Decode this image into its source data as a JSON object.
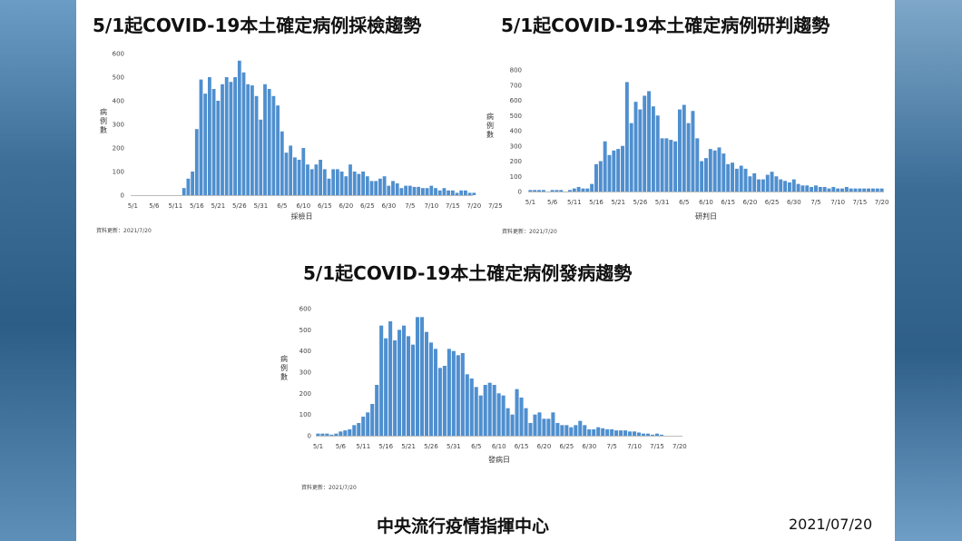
{
  "footer": {
    "org": "中央流行疫情指揮中心",
    "date": "2021/07/20"
  },
  "colors": {
    "bar": "#4f8fcf",
    "axis": "#bbbbbb"
  },
  "chart_data": [
    {
      "type": "bar",
      "title": "5/1起COVID-19本土確定病例採檢趨勢",
      "xlabel": "採檢日",
      "ylabel": "病例數",
      "note": "資料更新：2021/7/20",
      "ylim": [
        0,
        600
      ],
      "yticks": [
        "0",
        "100",
        "200",
        "300",
        "400",
        "500",
        "600"
      ],
      "xticks": [
        "5/1",
        "5/6",
        "5/11",
        "5/16",
        "5/21",
        "5/26",
        "5/31",
        "6/5",
        "6/10",
        "6/15",
        "6/20",
        "6/25",
        "6/30",
        "7/5",
        "7/10",
        "7/15",
        "7/20",
        "7/25"
      ],
      "x_start": "5/1",
      "values": [
        0,
        0,
        0,
        0,
        0,
        0,
        0,
        0,
        0,
        0,
        0,
        0,
        30,
        70,
        100,
        280,
        490,
        430,
        500,
        450,
        400,
        470,
        500,
        480,
        500,
        570,
        520,
        470,
        465,
        420,
        320,
        470,
        450,
        420,
        380,
        270,
        180,
        210,
        160,
        150,
        200,
        130,
        110,
        130,
        150,
        110,
        70,
        110,
        110,
        100,
        80,
        130,
        100,
        90,
        100,
        80,
        60,
        60,
        70,
        80,
        40,
        60,
        50,
        30,
        40,
        40,
        35,
        35,
        30,
        30,
        40,
        30,
        20,
        30,
        20,
        20,
        10,
        20,
        20,
        10,
        10,
        0,
        0,
        0,
        0,
        0,
        0
      ]
    },
    {
      "type": "bar",
      "title": "5/1起COVID-19本土確定病例研判趨勢",
      "xlabel": "研判日",
      "ylabel": "病例數",
      "note": "資料更新：2021/7/20",
      "ylim": [
        0,
        800
      ],
      "yticks": [
        "0",
        "100",
        "200",
        "300",
        "400",
        "500",
        "600",
        "700",
        "800"
      ],
      "xticks": [
        "5/1",
        "5/6",
        "5/11",
        "5/16",
        "5/21",
        "5/26",
        "5/31",
        "6/5",
        "6/10",
        "6/15",
        "6/20",
        "6/25",
        "6/30",
        "7/5",
        "7/10",
        "7/15",
        "7/20"
      ],
      "x_start": "5/1",
      "values": [
        10,
        10,
        10,
        10,
        0,
        10,
        10,
        10,
        0,
        10,
        20,
        30,
        20,
        20,
        50,
        180,
        200,
        330,
        240,
        270,
        280,
        300,
        720,
        450,
        590,
        540,
        630,
        660,
        560,
        500,
        350,
        350,
        340,
        330,
        540,
        570,
        450,
        530,
        350,
        200,
        220,
        280,
        270,
        290,
        250,
        180,
        190,
        150,
        170,
        150,
        100,
        120,
        80,
        80,
        110,
        130,
        100,
        80,
        70,
        60,
        80,
        50,
        40,
        40,
        30,
        40,
        30,
        30,
        20,
        30,
        20,
        20,
        30,
        20,
        20,
        20,
        20,
        20,
        20,
        20,
        20
      ]
    },
    {
      "type": "bar",
      "title": "5/1起COVID-19本土確定病例發病趨勢",
      "xlabel": "發病日",
      "ylabel": "病例數",
      "note": "資料更新：2021/7/20",
      "ylim": [
        0,
        600
      ],
      "yticks": [
        "0",
        "100",
        "200",
        "300",
        "400",
        "500",
        "600"
      ],
      "xticks": [
        "5/1",
        "5/6",
        "5/11",
        "5/16",
        "5/21",
        "5/26",
        "5/31",
        "6/5",
        "6/10",
        "6/15",
        "6/20",
        "6/25",
        "6/30",
        "7/5",
        "7/10",
        "7/15",
        "7/20"
      ],
      "x_start": "5/1",
      "values": [
        10,
        10,
        10,
        5,
        10,
        20,
        25,
        30,
        50,
        60,
        90,
        110,
        150,
        240,
        520,
        460,
        540,
        450,
        500,
        520,
        470,
        430,
        560,
        560,
        490,
        440,
        410,
        320,
        330,
        410,
        400,
        380,
        390,
        290,
        270,
        230,
        190,
        240,
        250,
        240,
        200,
        190,
        130,
        100,
        220,
        180,
        130,
        60,
        100,
        110,
        80,
        80,
        110,
        60,
        50,
        50,
        40,
        50,
        70,
        50,
        30,
        30,
        40,
        35,
        30,
        30,
        25,
        25,
        25,
        20,
        20,
        15,
        10,
        10,
        5,
        10,
        5,
        0,
        0,
        0,
        0
      ]
    }
  ]
}
